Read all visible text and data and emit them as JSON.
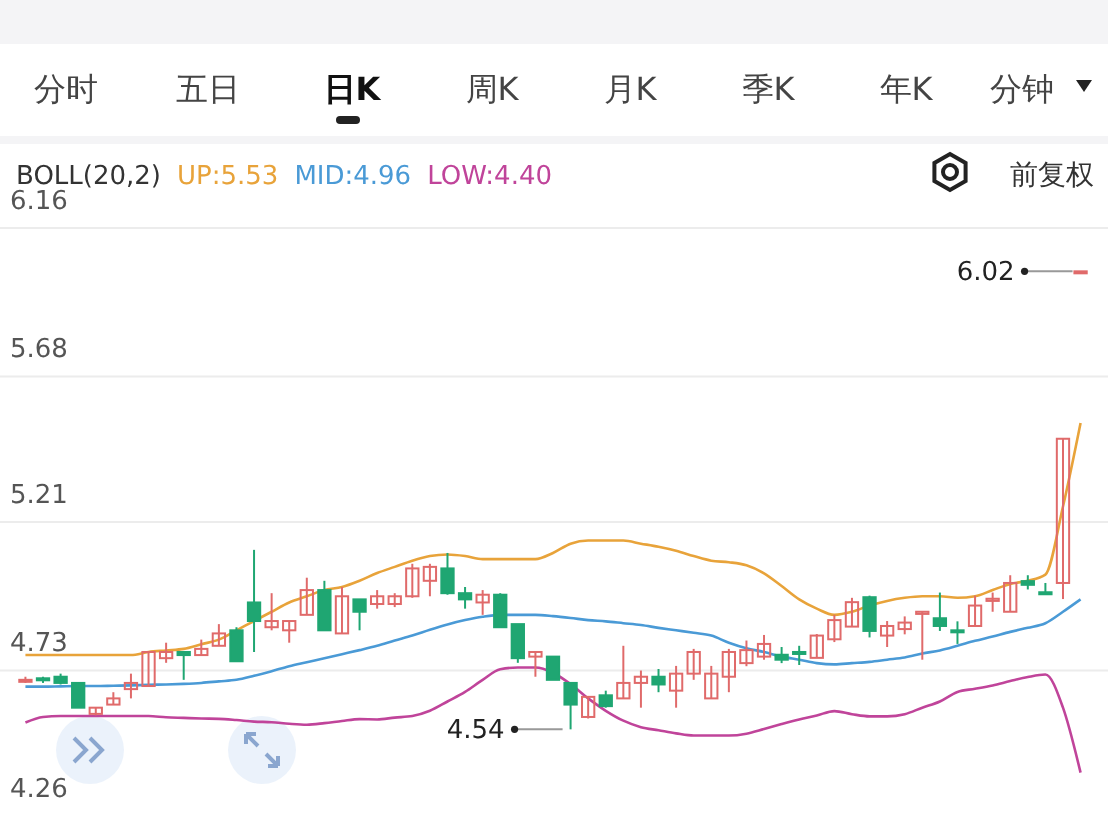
{
  "chart_data": {
    "type": "candlestick",
    "title": "BOLL(20,2)",
    "annotations": [
      "分时",
      "五日",
      "日K",
      "周K",
      "月K",
      "季K",
      "年K",
      "分钟",
      "前复权",
      "6.02",
      "4.54"
    ],
    "categories": [
      null,
      null,
      null,
      null,
      null,
      null,
      null,
      null,
      null,
      null,
      null,
      null,
      null,
      null,
      null,
      null,
      null,
      null,
      null,
      null,
      null,
      null,
      null,
      null,
      null,
      null,
      null,
      null,
      null,
      null,
      null,
      null,
      null,
      null,
      null,
      null,
      null,
      null,
      null,
      null,
      null,
      null,
      null,
      null,
      null,
      null,
      null,
      null,
      null,
      null,
      null,
      null,
      null,
      null,
      null,
      null,
      null,
      null,
      null,
      null,
      null
    ],
    "ohlc": [
      [
        4.7,
        4.71,
        4.69,
        4.7
      ],
      [
        4.705,
        4.71,
        4.69,
        4.7
      ],
      [
        4.71,
        4.72,
        4.685,
        4.69
      ],
      [
        4.69,
        4.69,
        4.61,
        4.61
      ],
      [
        4.59,
        4.61,
        4.585,
        4.61
      ],
      [
        4.62,
        4.66,
        4.62,
        4.64
      ],
      [
        4.67,
        4.72,
        4.64,
        4.69
      ],
      [
        4.68,
        4.79,
        4.68,
        4.79
      ],
      [
        4.77,
        4.82,
        4.755,
        4.79
      ],
      [
        4.79,
        4.79,
        4.7,
        4.78
      ],
      [
        4.78,
        4.83,
        4.78,
        4.8
      ],
      [
        4.81,
        4.88,
        4.81,
        4.85
      ],
      [
        4.86,
        4.87,
        4.76,
        4.76
      ],
      [
        4.95,
        5.12,
        4.79,
        4.89
      ],
      [
        4.87,
        4.98,
        4.86,
        4.89
      ],
      [
        4.86,
        4.89,
        4.82,
        4.89
      ],
      [
        4.91,
        5.03,
        4.91,
        4.99
      ],
      [
        4.99,
        5.02,
        4.86,
        4.86
      ],
      [
        4.85,
        5.0,
        4.85,
        4.97
      ],
      [
        4.96,
        4.96,
        4.86,
        4.92
      ],
      [
        4.945,
        4.99,
        4.93,
        4.97
      ],
      [
        4.945,
        4.98,
        4.935,
        4.97
      ],
      [
        4.97,
        5.075,
        4.965,
        5.06
      ],
      [
        5.02,
        5.075,
        4.97,
        5.065
      ],
      [
        5.06,
        5.11,
        4.975,
        4.98
      ],
      [
        4.98,
        5.0,
        4.93,
        4.96
      ],
      [
        4.95,
        4.99,
        4.91,
        4.975
      ],
      [
        4.975,
        4.98,
        4.87,
        4.87
      ],
      [
        4.88,
        4.88,
        4.755,
        4.77
      ],
      [
        4.775,
        4.79,
        4.71,
        4.79
      ],
      [
        4.775,
        4.775,
        4.7,
        4.7
      ],
      [
        4.69,
        4.69,
        4.54,
        4.62
      ],
      [
        4.58,
        4.645,
        4.575,
        4.645
      ],
      [
        4.65,
        4.665,
        4.61,
        4.615
      ],
      [
        4.64,
        4.81,
        4.64,
        4.69
      ],
      [
        4.69,
        4.73,
        4.61,
        4.71
      ],
      [
        4.71,
        4.735,
        4.66,
        4.685
      ],
      [
        4.665,
        4.745,
        4.61,
        4.72
      ],
      [
        4.72,
        4.8,
        4.7,
        4.79
      ],
      [
        4.64,
        4.745,
        4.64,
        4.72
      ],
      [
        4.71,
        4.8,
        4.66,
        4.79
      ],
      [
        4.754,
        4.827,
        4.744,
        4.796
      ],
      [
        4.775,
        4.845,
        4.765,
        4.816
      ],
      [
        4.781,
        4.806,
        4.754,
        4.765
      ],
      [
        4.79,
        4.81,
        4.748,
        4.785
      ],
      [
        4.771,
        4.848,
        4.771,
        4.843
      ],
      [
        4.831,
        4.91,
        4.822,
        4.893
      ],
      [
        4.872,
        4.965,
        4.872,
        4.951
      ],
      [
        4.967,
        4.972,
        4.837,
        4.858
      ],
      [
        4.843,
        4.89,
        4.806,
        4.874
      ],
      [
        4.864,
        4.905,
        4.847,
        4.885
      ],
      [
        4.913,
        4.92,
        4.765,
        4.92
      ],
      [
        4.899,
        4.982,
        4.858,
        4.874
      ],
      [
        4.86,
        4.889,
        4.816,
        4.857
      ],
      [
        4.874,
        4.972,
        4.874,
        4.94
      ],
      [
        4.955,
        4.982,
        4.92,
        4.962
      ],
      [
        4.92,
        5.038,
        4.92,
        5.013
      ],
      [
        5.019,
        5.038,
        4.992,
        5.007
      ],
      [
        4.983,
        5.013,
        4.976,
        4.981
      ],
      [
        5.013,
        5.479,
        4.961,
        5.479
      ],
      [
        6.02,
        6.02,
        6.02,
        6.02
      ]
    ],
    "series": [
      {
        "name": "UP:5.53",
        "type": "line",
        "color": "#e8a33a",
        "values": [
          4.78,
          4.78,
          4.78,
          4.78,
          4.78,
          4.78,
          4.78,
          4.79,
          4.795,
          4.8,
          4.815,
          4.83,
          4.86,
          4.89,
          4.92,
          4.95,
          4.97,
          4.99,
          5.0,
          5.02,
          5.045,
          5.065,
          5.085,
          5.1,
          5.105,
          5.1,
          5.09,
          5.09,
          5.09,
          5.09,
          5.11,
          5.14,
          5.15,
          5.15,
          5.15,
          5.14,
          5.13,
          5.117,
          5.1,
          5.085,
          5.08,
          5.07,
          5.044,
          5.003,
          4.96,
          4.93,
          4.91,
          4.92,
          4.94,
          4.955,
          4.965,
          4.97,
          4.97,
          4.965,
          4.97,
          4.99,
          5.01,
          5.02,
          5.04,
          5.26,
          5.53
        ]
      },
      {
        "name": "MID:4.96",
        "type": "line",
        "color": "#4a9ad6",
        "values": [
          4.678,
          4.678,
          4.679,
          4.68,
          4.68,
          4.681,
          4.682,
          4.684,
          4.685,
          4.687,
          4.69,
          4.695,
          4.7,
          4.713,
          4.728,
          4.744,
          4.757,
          4.77,
          4.783,
          4.796,
          4.81,
          4.827,
          4.843,
          4.862,
          4.879,
          4.893,
          4.904,
          4.91,
          4.91,
          4.91,
          4.906,
          4.9,
          4.893,
          4.889,
          4.883,
          4.877,
          4.868,
          4.86,
          4.852,
          4.843,
          4.82,
          4.802,
          4.79,
          4.775,
          4.765,
          4.754,
          4.75,
          4.754,
          4.758,
          4.765,
          4.772,
          4.785,
          4.795,
          4.81,
          4.826,
          4.84,
          4.855,
          4.868,
          4.883,
          4.92,
          4.96
        ]
      },
      {
        "name": "LOW:4.40",
        "type": "line",
        "color": "#c0449a",
        "values": [
          4.562,
          4.58,
          4.583,
          4.583,
          4.583,
          4.583,
          4.583,
          4.583,
          4.579,
          4.577,
          4.575,
          4.574,
          4.57,
          4.565,
          4.563,
          4.558,
          4.555,
          4.56,
          4.567,
          4.573,
          4.572,
          4.578,
          4.583,
          4.6,
          4.63,
          4.661,
          4.7,
          4.734,
          4.74,
          4.74,
          4.723,
          4.686,
          4.64,
          4.6,
          4.568,
          4.547,
          4.537,
          4.527,
          4.52,
          4.52,
          4.52,
          4.526,
          4.541,
          4.557,
          4.572,
          4.585,
          4.599,
          4.589,
          4.582,
          4.582,
          4.589,
          4.61,
          4.63,
          4.661,
          4.671,
          4.682,
          4.696,
          4.709,
          4.717,
          4.61,
          4.4
        ]
      }
    ],
    "ylim": [
      4.26,
      6.16
    ],
    "yticks": [
      6.16,
      5.68,
      5.21,
      4.73,
      4.26
    ],
    "grid": "y",
    "legend": "top left"
  }
}
